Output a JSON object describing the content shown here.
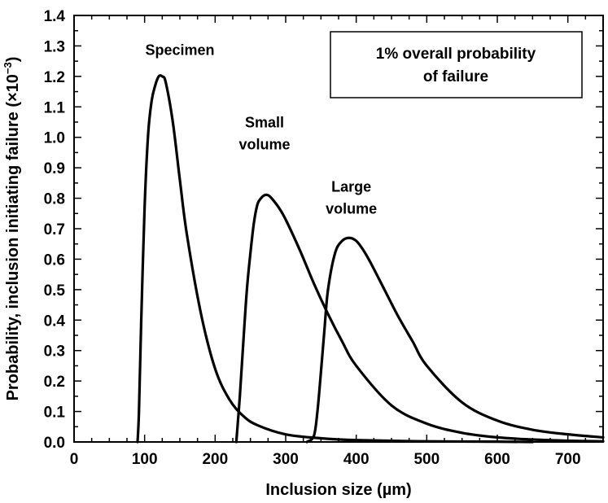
{
  "chart_data": {
    "type": "line",
    "xlabel": "Inclusion size (µm)",
    "ylabel": "Probability, inclusion initiating failure (×10",
    "ylabel_exponent": "−3",
    "ylabel_close": ")",
    "xlim": [
      0,
      750
    ],
    "ylim": [
      0,
      1.4
    ],
    "x_ticks": [
      "0",
      "100",
      "200",
      "300",
      "400",
      "500",
      "600",
      "700"
    ],
    "y_ticks": [
      "0.0",
      "0.1",
      "0.2",
      "0.3",
      "0.4",
      "0.5",
      "0.6",
      "0.7",
      "0.8",
      "0.9",
      "1.0",
      "1.1",
      "1.2",
      "1.3",
      "1.4"
    ],
    "grid": false,
    "annotation_box": {
      "line1": "1% overall probability",
      "line2": "of failure"
    },
    "series": [
      {
        "label_lines": [
          "Specimen"
        ],
        "x": [
          90,
          92,
          95,
          100,
          105,
          110,
          115,
          120,
          125,
          130,
          140,
          150,
          160,
          180,
          200,
          220,
          240,
          260,
          300,
          350,
          400,
          500,
          600,
          650
        ],
        "y": [
          0.0,
          0.1,
          0.38,
          0.77,
          1.01,
          1.12,
          1.17,
          1.2,
          1.2,
          1.18,
          1.05,
          0.86,
          0.68,
          0.42,
          0.24,
          0.14,
          0.085,
          0.055,
          0.025,
          0.012,
          0.006,
          0.002,
          0.001,
          0.0
        ]
      },
      {
        "label_lines": [
          "Small",
          "volume"
        ],
        "x": [
          230,
          235,
          240,
          245,
          250,
          255,
          260,
          265,
          270,
          275,
          280,
          290,
          300,
          320,
          340,
          360,
          380,
          400,
          450,
          500,
          550,
          600,
          650,
          700,
          750
        ],
        "y": [
          0.0,
          0.15,
          0.33,
          0.5,
          0.62,
          0.72,
          0.78,
          0.8,
          0.81,
          0.81,
          0.8,
          0.77,
          0.73,
          0.63,
          0.52,
          0.42,
          0.33,
          0.25,
          0.12,
          0.06,
          0.03,
          0.015,
          0.008,
          0.004,
          0.002
        ]
      },
      {
        "label_lines": [
          "Large",
          "volume"
        ],
        "x": [
          330,
          340,
          345,
          350,
          355,
          360,
          370,
          380,
          390,
          400,
          410,
          420,
          440,
          460,
          480,
          500,
          550,
          600,
          650,
          700,
          750
        ],
        "y": [
          0.0,
          0.02,
          0.1,
          0.23,
          0.37,
          0.5,
          0.62,
          0.66,
          0.67,
          0.66,
          0.63,
          0.59,
          0.5,
          0.41,
          0.33,
          0.25,
          0.13,
          0.07,
          0.04,
          0.025,
          0.015
        ]
      }
    ]
  }
}
